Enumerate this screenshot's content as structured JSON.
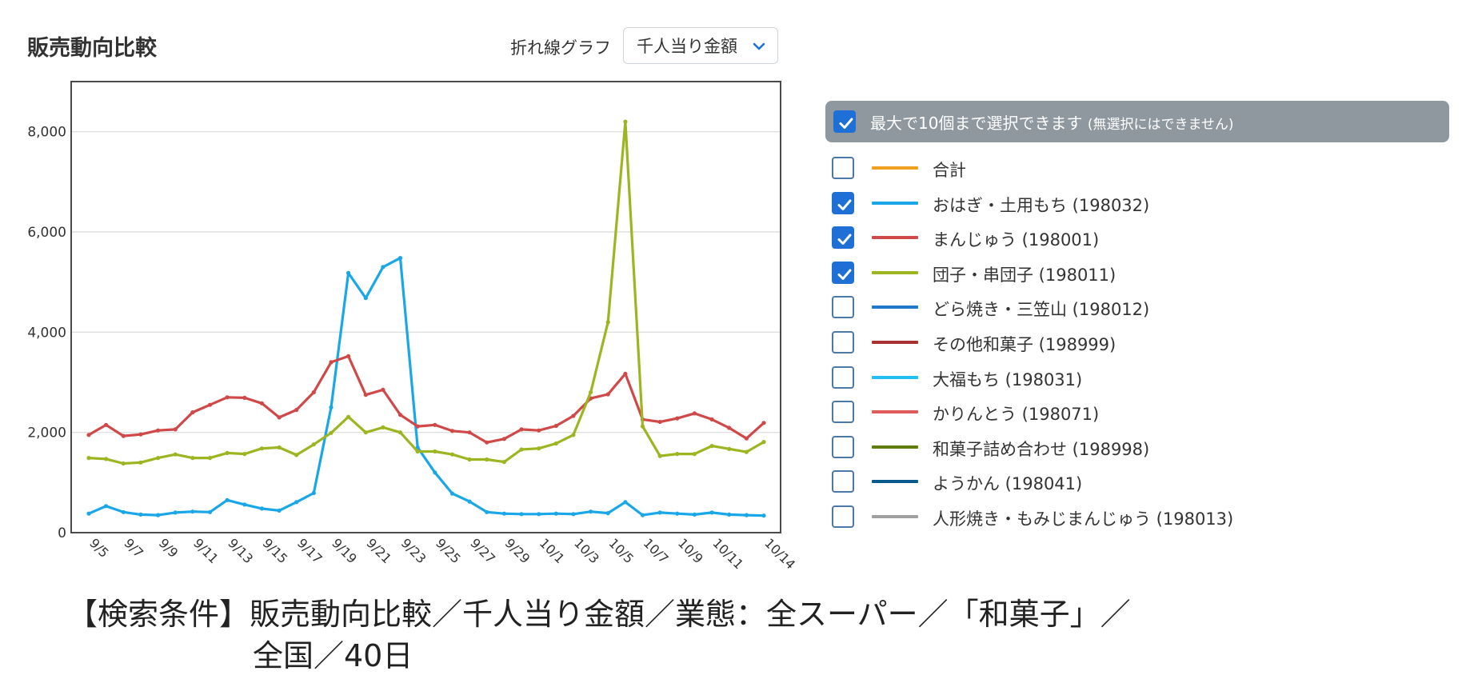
{
  "header": {
    "title": "販売動向比較",
    "chart_type_label": "折れ線グラフ",
    "metric_selected": "千人当り金額"
  },
  "legend": {
    "header_text": "最大で10個まで選択できます",
    "header_note": "(無選択にはできません)",
    "header_checked": true,
    "items": [
      {
        "label": "合計",
        "color": "#f0a020",
        "checked": false
      },
      {
        "label": "おはぎ・土用もち (198032)",
        "color": "#1aa7e8",
        "checked": true
      },
      {
        "label": "まんじゅう (198001)",
        "color": "#d04848",
        "checked": true
      },
      {
        "label": "団子・串団子 (198011)",
        "color": "#9db520",
        "checked": true
      },
      {
        "label": "どら焼き・三笠山 (198012)",
        "color": "#1f78c8",
        "checked": false
      },
      {
        "label": "その他和菓子 (198999)",
        "color": "#a83232",
        "checked": false
      },
      {
        "label": "大福もち (198031)",
        "color": "#22c0f0",
        "checked": false
      },
      {
        "label": "かりんとう (198071)",
        "color": "#e05a5a",
        "checked": false
      },
      {
        "label": "和菓子詰め合わせ (198998)",
        "color": "#5f7d0a",
        "checked": false
      },
      {
        "label": "ようかん (198041)",
        "color": "#0a5a8c",
        "checked": false
      },
      {
        "label": "人形焼き・もみじまんじゅう (198013)",
        "color": "#a0a0a0",
        "checked": false
      }
    ]
  },
  "caption": {
    "line1": "【検索条件】販売動向比較／千人当り金額／業態：全スーパー／「和菓子」／",
    "line2": "全国／40日"
  },
  "chart_data": {
    "type": "line",
    "grid": true,
    "ylim": [
      0,
      9000
    ],
    "yticks": [
      0,
      2000,
      4000,
      6000,
      8000
    ],
    "ytick_labels": [
      "0",
      "2,000",
      "4,000",
      "6,000",
      "8,000"
    ],
    "x": [
      "9/5",
      "9/6",
      "9/7",
      "9/8",
      "9/9",
      "9/10",
      "9/11",
      "9/12",
      "9/13",
      "9/14",
      "9/15",
      "9/16",
      "9/17",
      "9/18",
      "9/19",
      "9/20",
      "9/21",
      "9/22",
      "9/23",
      "9/24",
      "9/25",
      "9/26",
      "9/27",
      "9/28",
      "9/29",
      "9/30",
      "10/1",
      "10/2",
      "10/3",
      "10/4",
      "10/5",
      "10/6",
      "10/7",
      "10/8",
      "10/9",
      "10/10",
      "10/11",
      "10/12",
      "10/13",
      "10/14"
    ],
    "xtick_labels": [
      "9/5",
      "9/7",
      "9/9",
      "9/11",
      "9/13",
      "9/15",
      "9/17",
      "9/19",
      "9/21",
      "9/23",
      "9/25",
      "9/27",
      "9/29",
      "10/1",
      "10/3",
      "10/5",
      "10/7",
      "10/9",
      "10/11",
      "10/14"
    ],
    "series": [
      {
        "name": "おはぎ・土用もち (198032)",
        "color": "#1aa7e8",
        "values": [
          380,
          530,
          410,
          360,
          350,
          400,
          420,
          410,
          650,
          560,
          480,
          440,
          610,
          790,
          2500,
          5180,
          4680,
          5300,
          5480,
          1700,
          1200,
          780,
          620,
          410,
          380,
          370,
          370,
          380,
          370,
          420,
          390,
          610,
          350,
          400,
          380,
          360,
          400,
          360,
          350,
          340
        ]
      },
      {
        "name": "まんじゅう (198001)",
        "color": "#d04848",
        "values": [
          1950,
          2150,
          1930,
          1960,
          2040,
          2060,
          2400,
          2550,
          2700,
          2690,
          2580,
          2300,
          2450,
          2800,
          3400,
          3520,
          2750,
          2850,
          2350,
          2120,
          2150,
          2030,
          2000,
          1800,
          1870,
          2060,
          2040,
          2130,
          2330,
          2680,
          2760,
          3170,
          2260,
          2210,
          2280,
          2380,
          2260,
          2090,
          1880,
          2190
        ]
      },
      {
        "name": "団子・串団子 (198011)",
        "color": "#9db520",
        "values": [
          1490,
          1470,
          1380,
          1400,
          1490,
          1560,
          1490,
          1490,
          1590,
          1570,
          1680,
          1700,
          1550,
          1760,
          1990,
          2310,
          2000,
          2100,
          2000,
          1620,
          1620,
          1560,
          1460,
          1460,
          1410,
          1660,
          1680,
          1780,
          1950,
          2800,
          4200,
          8200,
          2120,
          1530,
          1570,
          1570,
          1730,
          1670,
          1610,
          1810
        ]
      }
    ]
  }
}
